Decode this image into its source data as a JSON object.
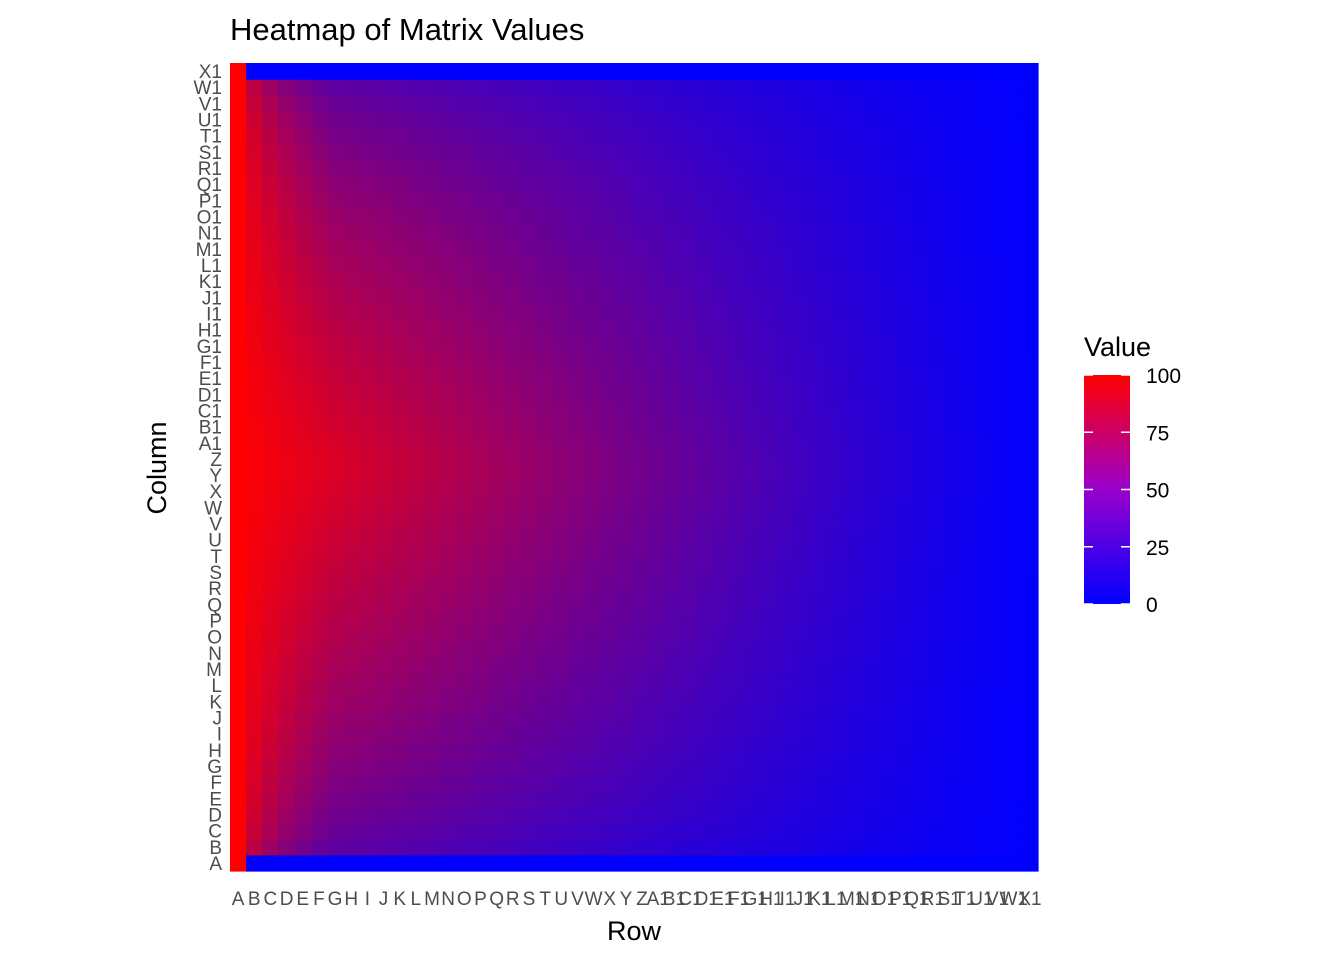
{
  "chart_data": {
    "type": "heatmap",
    "title": "Heatmap of Matrix Values",
    "xlabel": "Row",
    "ylabel": "Column",
    "x_categories": [
      "A",
      "B",
      "C",
      "D",
      "E",
      "F",
      "G",
      "H",
      "I",
      "J",
      "K",
      "L",
      "M",
      "N",
      "O",
      "P",
      "Q",
      "R",
      "S",
      "T",
      "U",
      "V",
      "W",
      "X",
      "Y",
      "Z",
      "A1",
      "B1",
      "C1",
      "D1",
      "E1",
      "F1",
      "G1",
      "H1",
      "I1",
      "J1",
      "K1",
      "L1",
      "M1",
      "N1",
      "O1",
      "P1",
      "Q1",
      "R1",
      "S1",
      "T1",
      "U1",
      "V1",
      "W1",
      "X1"
    ],
    "y_categories": [
      "A",
      "B",
      "C",
      "D",
      "E",
      "F",
      "G",
      "H",
      "I",
      "J",
      "K",
      "L",
      "M",
      "N",
      "O",
      "P",
      "Q",
      "R",
      "S",
      "T",
      "U",
      "V",
      "W",
      "X",
      "Y",
      "Z",
      "A1",
      "B1",
      "C1",
      "D1",
      "E1",
      "F1",
      "G1",
      "H1",
      "I1",
      "J1",
      "K1",
      "L1",
      "M1",
      "N1",
      "O1",
      "P1",
      "Q1",
      "R1",
      "S1",
      "T1",
      "U1",
      "V1",
      "W1",
      "X1"
    ],
    "value_rule": "value(row i, column j) = 100 * (1 - j/50)^(i)  for 1-based i, j; first row = 100, first/last column boundary rows near 0",
    "legend": {
      "title": "Value",
      "ticks": [
        0,
        25,
        50,
        75,
        100
      ],
      "range": [
        0,
        100
      ],
      "low_color": "#0000ff",
      "high_color": "#ff0000",
      "position": "right"
    },
    "fill_scale": {
      "low": "#0000ff",
      "high": "#ff0000"
    },
    "grid": false
  }
}
